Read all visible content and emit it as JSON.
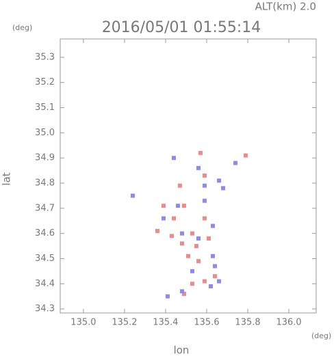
{
  "chart_data": {
    "type": "scatter",
    "title": "2016/05/01 01:55:14",
    "subtitle": "ALT(km) 2.0",
    "y_unit": "(deg)",
    "x_unit": "(deg)",
    "xlabel": "lon",
    "ylabel": "lat",
    "xlim": [
      134.887,
      136.133
    ],
    "ylim": [
      34.284,
      35.373
    ],
    "xticks": [
      {
        "value": 135,
        "label": "135.0"
      },
      135.2,
      135.4,
      135.6,
      135.8,
      {
        "value": 136,
        "label": "136.0"
      }
    ],
    "yticks": [
      34.3,
      34.4,
      34.5,
      34.6,
      34.7,
      34.8,
      34.9,
      {
        "value": 35,
        "label": "35.0"
      },
      35.1,
      35.2,
      35.3
    ],
    "series": [
      {
        "color": "#f08a8a",
        "x": [
          135.57,
          135.79,
          135.36,
          135.49,
          135.59,
          135.53,
          135.51,
          135.56,
          135.59,
          135.53,
          135.49,
          135.64,
          135.48,
          135.44,
          135.55,
          135.43,
          135.61,
          135.39,
          135.47,
          135.59
        ],
        "y": [
          34.92,
          34.91,
          34.61,
          34.71,
          34.66,
          34.6,
          34.51,
          34.49,
          34.41,
          34.4,
          34.36,
          34.43,
          34.56,
          34.66,
          34.55,
          34.59,
          34.58,
          34.71,
          34.79,
          34.83
        ]
      },
      {
        "color": "#8a8af0",
        "x": [
          135.74,
          135.24,
          135.39,
          135.46,
          135.59,
          135.66,
          135.63,
          135.64,
          135.66,
          135.62,
          135.48,
          135.41,
          135.56,
          135.48,
          135.59,
          135.44,
          135.56,
          135.63,
          135.68,
          135.53
        ],
        "y": [
          34.88,
          34.75,
          34.66,
          34.71,
          34.79,
          34.81,
          34.63,
          34.47,
          34.41,
          34.39,
          34.37,
          34.35,
          34.58,
          34.6,
          34.73,
          34.9,
          34.86,
          34.51,
          34.78,
          34.45
        ]
      }
    ]
  }
}
